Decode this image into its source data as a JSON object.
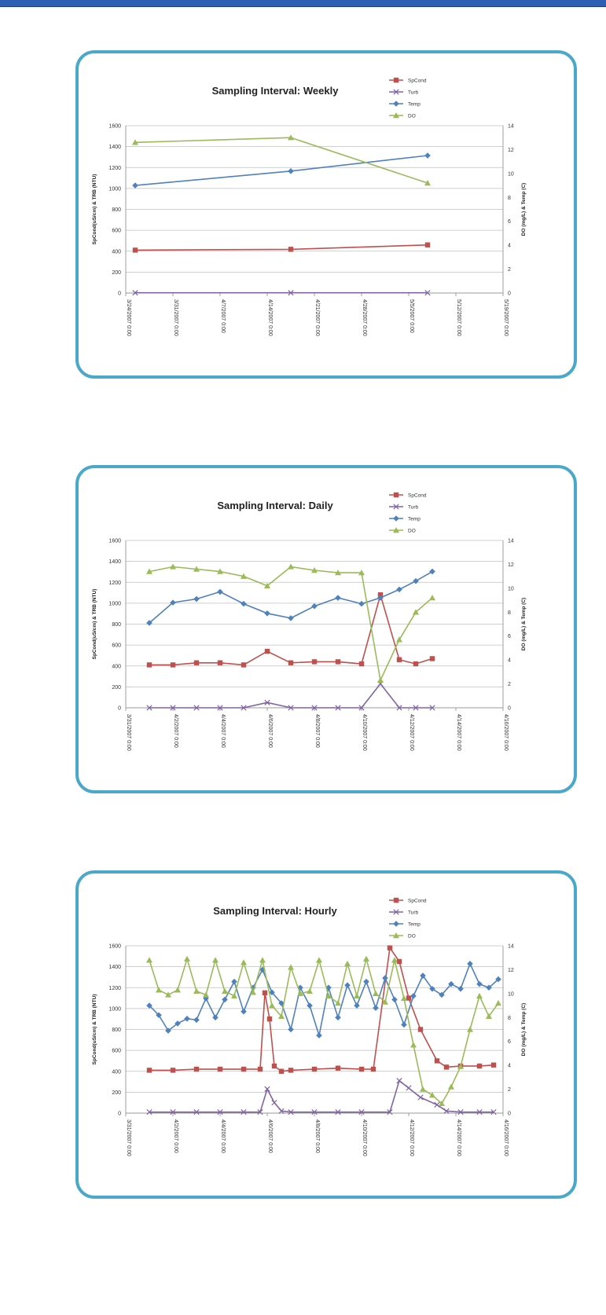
{
  "colors": {
    "spcond": "#c0504d",
    "turb": "#8064a2",
    "temp": "#4f81bd",
    "do": "#9bbb59",
    "frame": "#4aa9c9",
    "topbar": "#2f5fb3"
  },
  "chart_data": [
    {
      "type": "line",
      "title": "Sampling Interval: Weekly",
      "ylabel": "SpCond(uS/cm) & TRB (NTU)",
      "y2label": "DO (mg/L) & Temp (C)",
      "ylim": [
        0,
        1600
      ],
      "y2lim": [
        0,
        14
      ],
      "yticks": [
        "0",
        "200",
        "400",
        "600",
        "800",
        "1000",
        "1200",
        "1400",
        "1600"
      ],
      "y2ticks": [
        "0",
        "2",
        "4",
        "6",
        "8",
        "10",
        "12",
        "14"
      ],
      "xlim": [
        0,
        8
      ],
      "x_ticks": [
        {
          "x": 0,
          "label": "3/24/2007 0:00"
        },
        {
          "x": 1,
          "label": "3/31/2007 0:00"
        },
        {
          "x": 2,
          "label": "4/7/2007 0:00"
        },
        {
          "x": 3,
          "label": "4/14/2007 0:00"
        },
        {
          "x": 4,
          "label": "4/21/2007 0:00"
        },
        {
          "x": 5,
          "label": "4/28/2007 0:00"
        },
        {
          "x": 6,
          "label": "5/5/2007 0:00"
        },
        {
          "x": 7,
          "label": "5/12/2007 0:00"
        },
        {
          "x": 8,
          "label": "5/19/2007 0:00"
        }
      ],
      "legend": [
        "SpCond",
        "Turb",
        "Temp",
        "DO"
      ],
      "series": [
        {
          "name": "SpCond",
          "axis": "left",
          "marker": "square",
          "x": [
            0.2,
            3.5,
            6.4
          ],
          "values": [
            410,
            418,
            460
          ]
        },
        {
          "name": "Turb",
          "axis": "left",
          "marker": "x",
          "x": [
            0.2,
            3.5,
            6.4
          ],
          "values": [
            2,
            2,
            2
          ]
        },
        {
          "name": "Temp",
          "axis": "right",
          "marker": "diamond",
          "x": [
            0.2,
            3.5,
            6.4
          ],
          "values": [
            9.0,
            10.2,
            11.5
          ]
        },
        {
          "name": "DO",
          "axis": "right",
          "marker": "triangle",
          "x": [
            0.2,
            3.5,
            6.4
          ],
          "values": [
            12.6,
            13.0,
            9.2
          ]
        }
      ]
    },
    {
      "type": "line",
      "title": "Sampling Interval: Daily",
      "ylabel": "SpCond(uS/cm) & TRB (NTU)",
      "y2label": "DO (mg/L) & Temp (C)",
      "ylim": [
        0,
        1600
      ],
      "y2lim": [
        0,
        14
      ],
      "yticks": [
        "0",
        "200",
        "400",
        "600",
        "800",
        "1000",
        "1200",
        "1400",
        "1600"
      ],
      "y2ticks": [
        "0",
        "2",
        "4",
        "6",
        "8",
        "10",
        "12",
        "14"
      ],
      "xlim": [
        0,
        16
      ],
      "x_ticks": [
        {
          "x": 0,
          "label": "3/31/2007 0:00"
        },
        {
          "x": 2,
          "label": "4/2/2007 0:00"
        },
        {
          "x": 4,
          "label": "4/4/2007 0:00"
        },
        {
          "x": 6,
          "label": "4/6/2007 0:00"
        },
        {
          "x": 8,
          "label": "4/8/2007 0:00"
        },
        {
          "x": 10,
          "label": "4/10/2007 0:00"
        },
        {
          "x": 12,
          "label": "4/12/2007 0:00"
        },
        {
          "x": 14,
          "label": "4/14/2007 0:00"
        },
        {
          "x": 16,
          "label": "4/16/2007 0:00"
        }
      ],
      "legend": [
        "SpCond",
        "Turb",
        "Temp",
        "DO"
      ],
      "series": [
        {
          "name": "SpCond",
          "axis": "left",
          "marker": "square",
          "x": [
            1,
            2,
            3,
            4,
            5,
            6,
            7,
            8,
            9,
            10,
            10.8,
            11.6,
            12.3,
            13
          ],
          "values": [
            410,
            410,
            430,
            430,
            410,
            540,
            430,
            440,
            440,
            420,
            1080,
            460,
            420,
            470
          ]
        },
        {
          "name": "Turb",
          "axis": "left",
          "marker": "x",
          "x": [
            1,
            2,
            3,
            4,
            5,
            6,
            7,
            8,
            9,
            10,
            10.8,
            11.6,
            12.3,
            13
          ],
          "values": [
            0,
            0,
            0,
            0,
            0,
            50,
            0,
            0,
            0,
            0,
            230,
            0,
            0,
            0
          ]
        },
        {
          "name": "Temp",
          "axis": "right",
          "marker": "diamond",
          "x": [
            1,
            2,
            3,
            4,
            5,
            6,
            7,
            8,
            9,
            10,
            10.8,
            11.6,
            12.3,
            13
          ],
          "values": [
            7.1,
            8.8,
            9.1,
            9.7,
            8.7,
            7.9,
            7.5,
            8.5,
            9.2,
            8.7,
            9.2,
            9.9,
            10.6,
            11.4
          ]
        },
        {
          "name": "DO",
          "axis": "right",
          "marker": "triangle",
          "x": [
            1,
            2,
            3,
            4,
            5,
            6,
            7,
            8,
            9,
            10,
            10.8,
            11.6,
            12.3,
            13
          ],
          "values": [
            11.4,
            11.8,
            11.6,
            11.4,
            11.0,
            10.2,
            11.8,
            11.5,
            11.3,
            11.3,
            2.3,
            5.7,
            8.0,
            9.2
          ]
        }
      ]
    },
    {
      "type": "line",
      "title": "Sampling Interval: Hourly",
      "ylabel": "SpCond(uS/cm) & TRB (NTU)",
      "y2label": "DO (mg/L) & Temp (C)",
      "ylim": [
        0,
        1600
      ],
      "y2lim": [
        0,
        14
      ],
      "yticks": [
        "0",
        "200",
        "400",
        "600",
        "800",
        "1000",
        "1200",
        "1400",
        "1600"
      ],
      "y2ticks": [
        "0",
        "2",
        "4",
        "6",
        "8",
        "10",
        "12",
        "14"
      ],
      "xlim": [
        0,
        16
      ],
      "x_ticks": [
        {
          "x": 0,
          "label": "3/31/2007 0:00"
        },
        {
          "x": 2,
          "label": "4/2/2007 0:00"
        },
        {
          "x": 4,
          "label": "4/4/2007 0:00"
        },
        {
          "x": 6,
          "label": "4/6/2007 0:00"
        },
        {
          "x": 8,
          "label": "4/8/2007 0:00"
        },
        {
          "x": 10,
          "label": "4/10/2007 0:00"
        },
        {
          "x": 12,
          "label": "4/12/2007 0:00"
        },
        {
          "x": 14,
          "label": "4/14/2007 0:00"
        },
        {
          "x": 16,
          "label": "4/16/2007 0:00"
        }
      ],
      "legend": [
        "SpCond",
        "Turb",
        "Temp",
        "DO"
      ],
      "series": [
        {
          "name": "SpCond",
          "axis": "left",
          "marker": "square",
          "x": [
            1,
            2,
            3,
            4,
            5,
            5.7,
            5.9,
            6.1,
            6.3,
            6.6,
            7,
            8,
            9,
            10,
            10.5,
            11.2,
            11.6,
            12,
            12.5,
            13.2,
            13.6,
            14.2,
            15,
            15.6
          ],
          "values": [
            410,
            410,
            420,
            420,
            420,
            420,
            1150,
            900,
            450,
            400,
            410,
            420,
            430,
            420,
            420,
            1580,
            1450,
            1100,
            800,
            500,
            440,
            450,
            450,
            460
          ]
        },
        {
          "name": "Turb",
          "axis": "left",
          "marker": "x",
          "x": [
            1,
            2,
            3,
            4,
            5,
            5.7,
            6,
            6.3,
            6.6,
            7,
            8,
            9,
            10,
            11.2,
            11.6,
            12,
            12.5,
            13.2,
            13.6,
            14.2,
            15,
            15.6
          ],
          "values": [
            10,
            10,
            10,
            10,
            10,
            10,
            230,
            100,
            20,
            10,
            10,
            10,
            10,
            10,
            310,
            240,
            150,
            80,
            20,
            10,
            10,
            10
          ]
        },
        {
          "name": "Temp",
          "axis": "right",
          "marker": "diamond",
          "x": [
            1,
            1.4,
            1.8,
            2.2,
            2.6,
            3,
            3.4,
            3.8,
            4.2,
            4.6,
            5,
            5.4,
            5.8,
            6.2,
            6.6,
            7,
            7.4,
            7.8,
            8.2,
            8.6,
            9,
            9.4,
            9.8,
            10.2,
            10.6,
            11,
            11.4,
            11.8,
            12.2,
            12.6,
            13,
            13.4,
            13.8,
            14.2,
            14.6,
            15,
            15.4,
            15.8
          ],
          "values": [
            9,
            8.2,
            6.9,
            7.5,
            7.9,
            7.8,
            9.6,
            8.0,
            9.5,
            11.0,
            8.5,
            10.5,
            12.0,
            10.1,
            9.2,
            7.0,
            10.5,
            9.0,
            6.5,
            10.5,
            8.0,
            10.7,
            9.0,
            11.0,
            8.8,
            11.3,
            9.5,
            7.4,
            9.8,
            11.5,
            10.4,
            9.9,
            10.8,
            10.4,
            12.5,
            10.8,
            10.5,
            11.2
          ]
        },
        {
          "name": "DO",
          "axis": "right",
          "marker": "triangle",
          "x": [
            1,
            1.4,
            1.8,
            2.2,
            2.6,
            3,
            3.4,
            3.8,
            4.2,
            4.6,
            5,
            5.4,
            5.8,
            6.2,
            6.6,
            7,
            7.4,
            7.8,
            8.2,
            8.6,
            9,
            9.4,
            9.8,
            10.2,
            10.6,
            11,
            11.4,
            11.8,
            12.2,
            12.6,
            13,
            13.4,
            13.8,
            14.2,
            14.6,
            15,
            15.4,
            15.8
          ],
          "values": [
            12.8,
            10.3,
            9.9,
            10.3,
            12.9,
            10.2,
            9.9,
            12.8,
            10.2,
            9.8,
            12.6,
            10.1,
            12.8,
            9.0,
            8.1,
            12.2,
            10.0,
            10.2,
            12.8,
            9.8,
            9.2,
            12.5,
            9.8,
            12.9,
            10.0,
            9.3,
            12.8,
            9.6,
            5.7,
            2.0,
            1.5,
            0.8,
            2.2,
            3.9,
            7.0,
            9.8,
            8.1,
            9.2
          ]
        }
      ]
    }
  ]
}
